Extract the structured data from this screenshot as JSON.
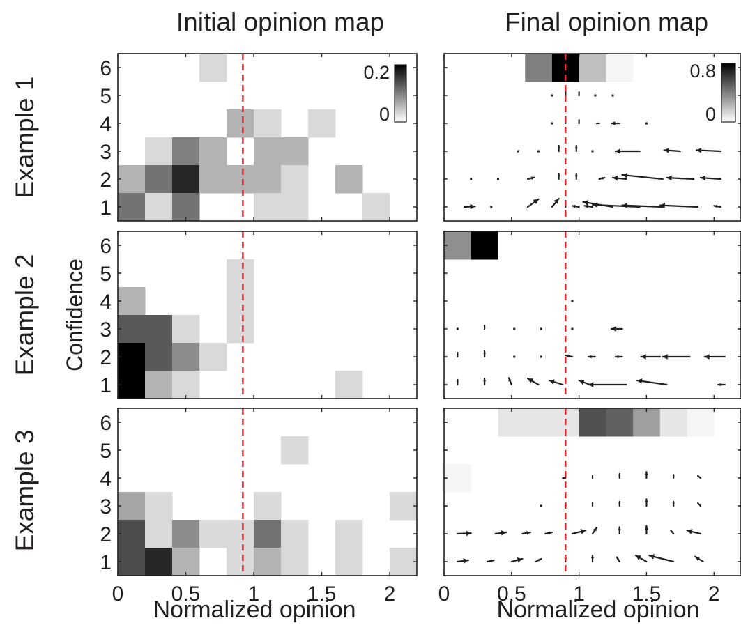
{
  "figure": {
    "column_titles": [
      "Initial opinion map",
      "Final opinion map"
    ],
    "row_labels": [
      "Example 1",
      "Example 2",
      "Example 3"
    ],
    "shared_ylabel": "Confidence",
    "xlabel": "Normalized opinion"
  },
  "chart_data": [
    {
      "type": "heatmap",
      "title": "Initial opinion map",
      "row_label": "Example 1",
      "xlabel": "",
      "ylabel": "",
      "xlim": [
        0,
        2.2
      ],
      "ylim": [
        0.5,
        6.5
      ],
      "x_bin": 0.2,
      "xticks": [],
      "yticks": [
        1,
        2,
        3,
        4,
        5,
        6
      ],
      "reference_line_x": 0.92,
      "colorbar": {
        "min": 0,
        "max": 0.2,
        "tick_labels": [
          "0.2",
          "0"
        ]
      },
      "cells": [
        {
          "x": 0.6,
          "y": 6,
          "v": 0.03
        },
        {
          "x": 0.8,
          "y": 4,
          "v": 0.06
        },
        {
          "x": 1.0,
          "y": 4,
          "v": 0.03
        },
        {
          "x": 1.4,
          "y": 4,
          "v": 0.03
        },
        {
          "x": 0.2,
          "y": 3,
          "v": 0.03
        },
        {
          "x": 0.4,
          "y": 3,
          "v": 0.1
        },
        {
          "x": 0.6,
          "y": 3,
          "v": 0.06
        },
        {
          "x": 1.0,
          "y": 3,
          "v": 0.06
        },
        {
          "x": 1.2,
          "y": 3,
          "v": 0.06
        },
        {
          "x": 0.0,
          "y": 2,
          "v": 0.06
        },
        {
          "x": 0.2,
          "y": 2,
          "v": 0.11
        },
        {
          "x": 0.4,
          "y": 2,
          "v": 0.17
        },
        {
          "x": 0.6,
          "y": 2,
          "v": 0.06
        },
        {
          "x": 0.8,
          "y": 2,
          "v": 0.06
        },
        {
          "x": 1.0,
          "y": 2,
          "v": 0.06
        },
        {
          "x": 1.2,
          "y": 2,
          "v": 0.03
        },
        {
          "x": 1.6,
          "y": 2,
          "v": 0.06
        },
        {
          "x": 0.0,
          "y": 1,
          "v": 0.11
        },
        {
          "x": 0.2,
          "y": 1,
          "v": 0.03
        },
        {
          "x": 0.4,
          "y": 1,
          "v": 0.11
        },
        {
          "x": 1.0,
          "y": 1,
          "v": 0.03
        },
        {
          "x": 1.2,
          "y": 1,
          "v": 0.03
        },
        {
          "x": 1.8,
          "y": 1,
          "v": 0.03
        }
      ]
    },
    {
      "type": "heatmap",
      "title": "Final opinion map",
      "row_label": "Example 1",
      "xlabel": "",
      "ylabel": "",
      "xlim": [
        0,
        2.2
      ],
      "ylim": [
        0.5,
        6.5
      ],
      "x_bin": 0.2,
      "xticks": [],
      "yticks": [
        1,
        2,
        3,
        4,
        5,
        6
      ],
      "reference_line_x": 0.9,
      "colorbar": {
        "min": 0,
        "max": 0.8,
        "tick_labels": [
          "0.8",
          "0"
        ]
      },
      "cells": [
        {
          "x": 0.6,
          "y": 6,
          "v": 0.4
        },
        {
          "x": 0.8,
          "y": 6,
          "v": 0.8
        },
        {
          "x": 1.0,
          "y": 6,
          "v": 0.2
        },
        {
          "x": 1.2,
          "y": 6,
          "v": 0.03
        }
      ],
      "arrows": [
        {
          "x": 0.8,
          "y": 5,
          "dx": 0,
          "dy": 0
        },
        {
          "x": 0.9,
          "y": 5,
          "dx": 0,
          "dy": 0.15
        },
        {
          "x": 1.0,
          "y": 5,
          "dx": 0,
          "dy": 0.12
        },
        {
          "x": 1.12,
          "y": 5,
          "dx": 0,
          "dy": 0
        },
        {
          "x": 1.25,
          "y": 5,
          "dx": 0,
          "dy": 0
        },
        {
          "x": 0.8,
          "y": 4,
          "dx": 0,
          "dy": 0
        },
        {
          "x": 0.9,
          "y": 4,
          "dx": 0,
          "dy": 0.12
        },
        {
          "x": 1.0,
          "y": 4,
          "dx": 0,
          "dy": 0.12
        },
        {
          "x": 1.15,
          "y": 4,
          "dx": -0.02,
          "dy": 0
        },
        {
          "x": 1.3,
          "y": 4,
          "dx": -0.06,
          "dy": 0
        },
        {
          "x": 1.5,
          "y": 4,
          "dx": 0,
          "dy": 0
        },
        {
          "x": 0.55,
          "y": 3,
          "dx": 0,
          "dy": 0
        },
        {
          "x": 0.7,
          "y": 3,
          "dx": 0,
          "dy": 0
        },
        {
          "x": 0.85,
          "y": 3,
          "dx": 0,
          "dy": 0.2
        },
        {
          "x": 0.98,
          "y": 3,
          "dx": 0,
          "dy": 0.2
        },
        {
          "x": 1.1,
          "y": 3,
          "dx": 0,
          "dy": 0
        },
        {
          "x": 1.45,
          "y": 3,
          "dx": -0.18,
          "dy": 0
        },
        {
          "x": 1.75,
          "y": 3,
          "dx": -0.12,
          "dy": 0.04
        },
        {
          "x": 2.05,
          "y": 3,
          "dx": -0.18,
          "dy": 0.04
        },
        {
          "x": 0.2,
          "y": 2,
          "dx": 0,
          "dy": 0
        },
        {
          "x": 0.4,
          "y": 2,
          "dx": 0,
          "dy": 0
        },
        {
          "x": 0.62,
          "y": 2,
          "dx": 0.05,
          "dy": 0.06
        },
        {
          "x": 0.85,
          "y": 2,
          "dx": 0,
          "dy": 0.2
        },
        {
          "x": 0.98,
          "y": 2,
          "dx": 0,
          "dy": 0.2
        },
        {
          "x": 1.15,
          "y": 2,
          "dx": 0.04,
          "dy": 0.05
        },
        {
          "x": 1.35,
          "y": 2,
          "dx": -0.1,
          "dy": 0.05
        },
        {
          "x": 1.62,
          "y": 2,
          "dx": -0.3,
          "dy": 0.15
        },
        {
          "x": 1.85,
          "y": 2,
          "dx": -0.2,
          "dy": 0.05
        },
        {
          "x": 2.05,
          "y": 2,
          "dx": -0.15,
          "dy": 0.05
        },
        {
          "x": 0.15,
          "y": 1,
          "dx": 0.08,
          "dy": 0.02
        },
        {
          "x": 0.35,
          "y": 1,
          "dx": 0,
          "dy": 0
        },
        {
          "x": 0.62,
          "y": 1,
          "dx": 0.08,
          "dy": 0.28
        },
        {
          "x": 0.8,
          "y": 1,
          "dx": 0.05,
          "dy": 0.3
        },
        {
          "x": 0.9,
          "y": 1,
          "dx": 0,
          "dy": 0.15
        },
        {
          "x": 1.0,
          "y": 1,
          "dx": -0.05,
          "dy": 0.04
        },
        {
          "x": 1.1,
          "y": 1,
          "dx": -0.06,
          "dy": 0.04
        },
        {
          "x": 1.25,
          "y": 1,
          "dx": -0.22,
          "dy": 0.18
        },
        {
          "x": 1.45,
          "y": 1,
          "dx": -0.35,
          "dy": 0.08
        },
        {
          "x": 1.62,
          "y": 1,
          "dx": -0.3,
          "dy": 0.06
        },
        {
          "x": 1.88,
          "y": 1,
          "dx": -0.28,
          "dy": 0.06
        },
        {
          "x": 2.05,
          "y": 1,
          "dx": -0.05,
          "dy": 0.04
        }
      ]
    },
    {
      "type": "heatmap",
      "title": "",
      "row_label": "Example 2",
      "xlabel": "",
      "ylabel": "Confidence",
      "xlim": [
        0,
        2.2
      ],
      "ylim": [
        0.5,
        6.5
      ],
      "x_bin": 0.2,
      "xticks": [],
      "yticks": [
        1,
        2,
        3,
        4,
        5,
        6
      ],
      "reference_line_x": 0.92,
      "cells": [
        {
          "x": 0.8,
          "y": 5,
          "v": 0.03
        },
        {
          "x": 0.0,
          "y": 4,
          "v": 0.06
        },
        {
          "x": 0.8,
          "y": 4,
          "v": 0.03
        },
        {
          "x": 0.0,
          "y": 3,
          "v": 0.13
        },
        {
          "x": 0.2,
          "y": 3,
          "v": 0.13
        },
        {
          "x": 0.4,
          "y": 3,
          "v": 0.03
        },
        {
          "x": 0.8,
          "y": 3,
          "v": 0.03
        },
        {
          "x": 0.0,
          "y": 2,
          "v": 0.2
        },
        {
          "x": 0.2,
          "y": 2,
          "v": 0.13
        },
        {
          "x": 0.4,
          "y": 2,
          "v": 0.09
        },
        {
          "x": 0.6,
          "y": 2,
          "v": 0.03
        },
        {
          "x": 0.0,
          "y": 1,
          "v": 0.2
        },
        {
          "x": 0.2,
          "y": 1,
          "v": 0.06
        },
        {
          "x": 0.4,
          "y": 1,
          "v": 0.03
        },
        {
          "x": 1.6,
          "y": 1,
          "v": 0.03
        }
      ]
    },
    {
      "type": "heatmap",
      "title": "",
      "row_label": "Example 2",
      "xlabel": "",
      "ylabel": "",
      "xlim": [
        0,
        2.2
      ],
      "ylim": [
        0.5,
        6.5
      ],
      "x_bin": 0.2,
      "xticks": [],
      "yticks": [
        1,
        2,
        3,
        4,
        5,
        6
      ],
      "reference_line_x": 0.9,
      "cells": [
        {
          "x": 0.0,
          "y": 6,
          "v": 0.35
        },
        {
          "x": 0.2,
          "y": 6,
          "v": 0.8
        }
      ],
      "arrows": [
        {
          "x": 0.95,
          "y": 4,
          "dx": 0,
          "dy": 0
        },
        {
          "x": 0.1,
          "y": 3,
          "dx": 0,
          "dy": 0
        },
        {
          "x": 0.3,
          "y": 3,
          "dx": 0,
          "dy": 0.12
        },
        {
          "x": 0.52,
          "y": 3,
          "dx": 0,
          "dy": 0
        },
        {
          "x": 0.72,
          "y": 3,
          "dx": 0,
          "dy": 0
        },
        {
          "x": 0.95,
          "y": 3,
          "dx": 0,
          "dy": 0
        },
        {
          "x": 1.32,
          "y": 3,
          "dx": -0.08,
          "dy": 0
        },
        {
          "x": 0.1,
          "y": 2,
          "dx": 0,
          "dy": 0.15
        },
        {
          "x": 0.3,
          "y": 2,
          "dx": 0,
          "dy": 0.2
        },
        {
          "x": 0.52,
          "y": 2,
          "dx": 0,
          "dy": 0
        },
        {
          "x": 0.72,
          "y": 2,
          "dx": 0,
          "dy": 0
        },
        {
          "x": 0.95,
          "y": 2,
          "dx": -0.05,
          "dy": 0.05
        },
        {
          "x": 1.12,
          "y": 2,
          "dx": -0.05,
          "dy": 0
        },
        {
          "x": 1.32,
          "y": 2,
          "dx": -0.05,
          "dy": 0
        },
        {
          "x": 1.6,
          "y": 2,
          "dx": -0.14,
          "dy": 0
        },
        {
          "x": 1.82,
          "y": 2,
          "dx": -0.2,
          "dy": 0
        },
        {
          "x": 2.08,
          "y": 2,
          "dx": -0.15,
          "dy": 0
        },
        {
          "x": 0.1,
          "y": 1,
          "dx": 0,
          "dy": 0.18
        },
        {
          "x": 0.3,
          "y": 1,
          "dx": 0,
          "dy": 0.22
        },
        {
          "x": 0.5,
          "y": 1,
          "dx": -0.02,
          "dy": 0.24
        },
        {
          "x": 0.7,
          "y": 1,
          "dx": -0.08,
          "dy": 0.22
        },
        {
          "x": 0.88,
          "y": 1,
          "dx": -0.1,
          "dy": 0.15
        },
        {
          "x": 1.08,
          "y": 1,
          "dx": -0.08,
          "dy": 0.15
        },
        {
          "x": 1.35,
          "y": 1,
          "dx": -0.28,
          "dy": 0
        },
        {
          "x": 1.65,
          "y": 1,
          "dx": -0.22,
          "dy": 0.15
        },
        {
          "x": 2.08,
          "y": 1,
          "dx": -0.05,
          "dy": 0
        }
      ]
    },
    {
      "type": "heatmap",
      "title": "",
      "row_label": "Example 3",
      "xlabel": "Normalized opinion",
      "ylabel": "",
      "xlim": [
        0,
        2.2
      ],
      "ylim": [
        0.5,
        6.5
      ],
      "x_bin": 0.2,
      "xticks": [
        "0",
        "0.5",
        "1",
        "1.5",
        "2"
      ],
      "yticks": [
        1,
        2,
        3,
        4,
        5,
        6
      ],
      "reference_line_x": 0.92,
      "cells": [
        {
          "x": 1.2,
          "y": 5,
          "v": 0.03
        },
        {
          "x": 0.0,
          "y": 3,
          "v": 0.07
        },
        {
          "x": 0.2,
          "y": 3,
          "v": 0.03
        },
        {
          "x": 1.0,
          "y": 3,
          "v": 0.03
        },
        {
          "x": 2.0,
          "y": 3,
          "v": 0.03
        },
        {
          "x": 0.0,
          "y": 2,
          "v": 0.14
        },
        {
          "x": 0.2,
          "y": 2,
          "v": 0.03
        },
        {
          "x": 0.4,
          "y": 2,
          "v": 0.09
        },
        {
          "x": 0.6,
          "y": 2,
          "v": 0.03
        },
        {
          "x": 0.8,
          "y": 2,
          "v": 0.03
        },
        {
          "x": 1.0,
          "y": 2,
          "v": 0.11
        },
        {
          "x": 1.2,
          "y": 2,
          "v": 0.03
        },
        {
          "x": 1.6,
          "y": 2,
          "v": 0.03
        },
        {
          "x": 0.0,
          "y": 1,
          "v": 0.14
        },
        {
          "x": 0.2,
          "y": 1,
          "v": 0.17
        },
        {
          "x": 0.4,
          "y": 1,
          "v": 0.06
        },
        {
          "x": 0.8,
          "y": 1,
          "v": 0.03
        },
        {
          "x": 1.0,
          "y": 1,
          "v": 0.06
        },
        {
          "x": 1.2,
          "y": 1,
          "v": 0.03
        },
        {
          "x": 1.6,
          "y": 1,
          "v": 0.03
        },
        {
          "x": 2.0,
          "y": 1,
          "v": 0.03
        }
      ]
    },
    {
      "type": "heatmap",
      "title": "",
      "row_label": "Example 3",
      "xlabel": "Normalized opinion",
      "ylabel": "",
      "xlim": [
        0,
        2.2
      ],
      "ylim": [
        0.5,
        6.5
      ],
      "x_bin": 0.2,
      "xticks": [
        "0",
        "0.5",
        "1",
        "1.5",
        "2"
      ],
      "yticks": [
        1,
        2,
        3,
        4,
        5,
        6
      ],
      "reference_line_x": 0.9,
      "cells": [
        {
          "x": 0.4,
          "y": 6,
          "v": 0.08
        },
        {
          "x": 0.6,
          "y": 6,
          "v": 0.08
        },
        {
          "x": 0.8,
          "y": 6,
          "v": 0.08
        },
        {
          "x": 1.0,
          "y": 6,
          "v": 0.55
        },
        {
          "x": 1.2,
          "y": 6,
          "v": 0.5
        },
        {
          "x": 1.4,
          "y": 6,
          "v": 0.3
        },
        {
          "x": 1.6,
          "y": 6,
          "v": 0.08
        },
        {
          "x": 1.8,
          "y": 6,
          "v": 0.03
        },
        {
          "x": 0.0,
          "y": 4,
          "v": 0.03
        }
      ],
      "arrows": [
        {
          "x": 0.9,
          "y": 4,
          "dx": -0.02,
          "dy": 0
        },
        {
          "x": 1.1,
          "y": 4,
          "dx": 0,
          "dy": 0.08
        },
        {
          "x": 1.3,
          "y": 4,
          "dx": 0,
          "dy": 0.15
        },
        {
          "x": 1.5,
          "y": 4,
          "dx": 0,
          "dy": 0.22
        },
        {
          "x": 1.7,
          "y": 4,
          "dx": 0,
          "dy": 0.12
        },
        {
          "x": 1.9,
          "y": 4,
          "dx": -0.02,
          "dy": 0.08
        },
        {
          "x": 0.72,
          "y": 3,
          "dx": 0,
          "dy": 0
        },
        {
          "x": 0.9,
          "y": 3,
          "dx": 0,
          "dy": 0
        },
        {
          "x": 1.1,
          "y": 3,
          "dx": 0,
          "dy": 0.12
        },
        {
          "x": 1.3,
          "y": 3,
          "dx": 0,
          "dy": 0.15
        },
        {
          "x": 1.5,
          "y": 3,
          "dx": 0,
          "dy": 0.24
        },
        {
          "x": 1.7,
          "y": 3,
          "dx": 0,
          "dy": 0.15
        },
        {
          "x": 1.9,
          "y": 3,
          "dx": -0.02,
          "dy": 0.1
        },
        {
          "x": 0.1,
          "y": 2,
          "dx": 0.1,
          "dy": 0.02
        },
        {
          "x": 0.38,
          "y": 2,
          "dx": 0.08,
          "dy": 0.05
        },
        {
          "x": 0.58,
          "y": 2,
          "dx": 0.06,
          "dy": 0.05
        },
        {
          "x": 0.75,
          "y": 2,
          "dx": 0.05,
          "dy": 0.05
        },
        {
          "x": 0.95,
          "y": 2,
          "dx": 0.1,
          "dy": 0.12
        },
        {
          "x": 1.1,
          "y": 2,
          "dx": 0.03,
          "dy": 0.22
        },
        {
          "x": 1.3,
          "y": 2,
          "dx": 0,
          "dy": 0.24
        },
        {
          "x": 1.5,
          "y": 2,
          "dx": 0,
          "dy": 0.28
        },
        {
          "x": 1.7,
          "y": 2,
          "dx": -0.02,
          "dy": 0.12
        },
        {
          "x": 1.9,
          "y": 2,
          "dx": -0.1,
          "dy": 0.12
        },
        {
          "x": 0.1,
          "y": 1,
          "dx": 0.08,
          "dy": 0.05
        },
        {
          "x": 0.32,
          "y": 1,
          "dx": 0.05,
          "dy": 0.05
        },
        {
          "x": 0.5,
          "y": 1,
          "dx": 0.08,
          "dy": 0.1
        },
        {
          "x": 0.68,
          "y": 1,
          "dx": 0.04,
          "dy": 0.1
        },
        {
          "x": 0.9,
          "y": 1,
          "dx": 0,
          "dy": 0.2
        },
        {
          "x": 1.1,
          "y": 1,
          "dx": 0,
          "dy": 0.22
        },
        {
          "x": 1.3,
          "y": 1,
          "dx": -0.02,
          "dy": 0.16
        },
        {
          "x": 1.5,
          "y": 1,
          "dx": -0.08,
          "dy": 0.22
        },
        {
          "x": 1.7,
          "y": 1,
          "dx": -0.18,
          "dy": 0.22
        },
        {
          "x": 1.92,
          "y": 1,
          "dx": -0.06,
          "dy": 0.18
        }
      ]
    }
  ]
}
